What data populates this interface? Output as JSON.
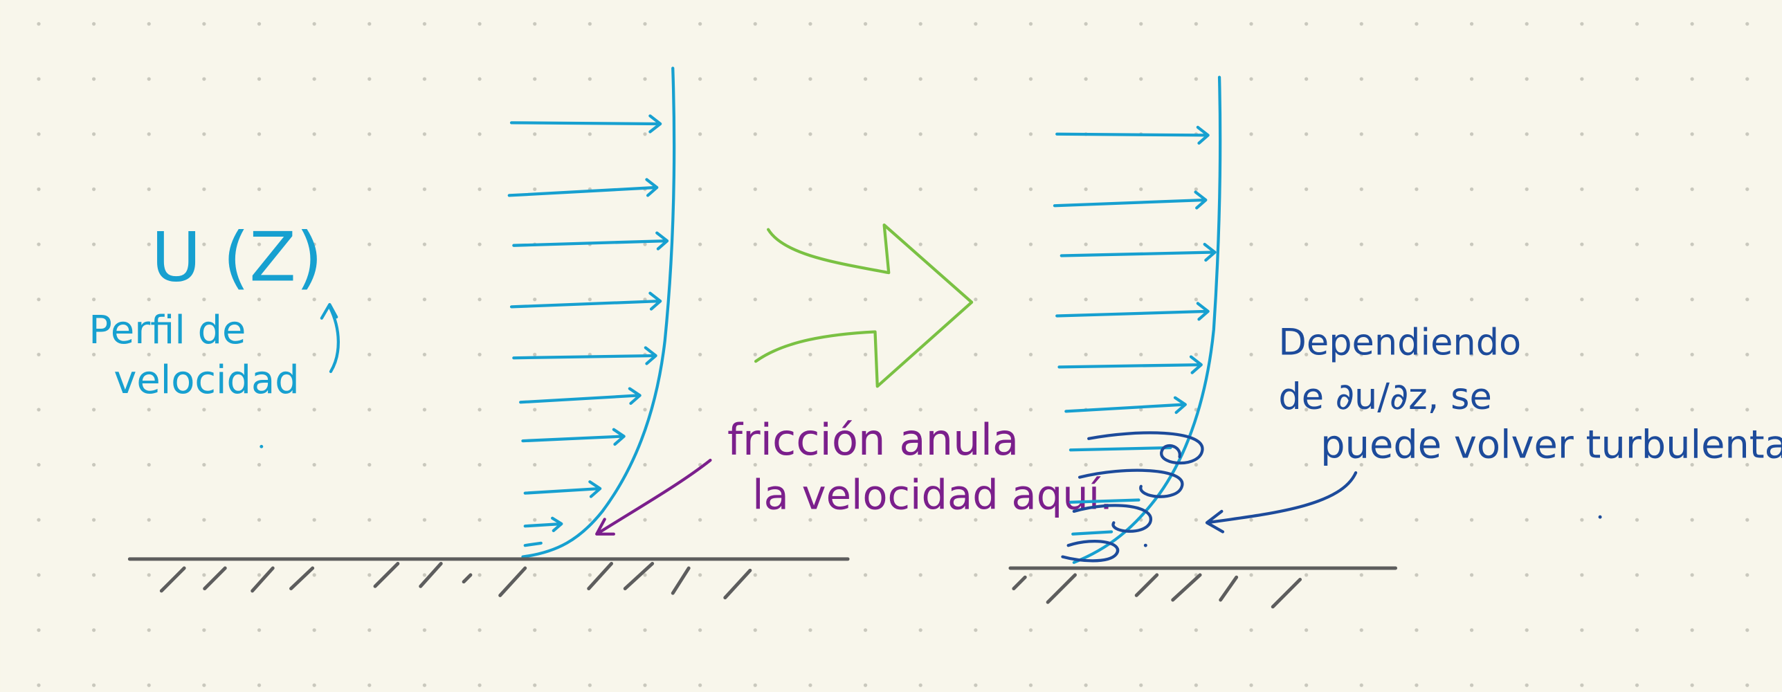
{
  "left_panel": {
    "label": "U (Z)",
    "caption": [
      "Perfil de",
      "velocidad"
    ],
    "annotation": [
      "fricción anula",
      "la velocidad aquí."
    ]
  },
  "right_panel": {
    "annotation": [
      "Dependiendo",
      "de ∂u/∂z, se",
      "puede volver turbulenta"
    ]
  }
}
